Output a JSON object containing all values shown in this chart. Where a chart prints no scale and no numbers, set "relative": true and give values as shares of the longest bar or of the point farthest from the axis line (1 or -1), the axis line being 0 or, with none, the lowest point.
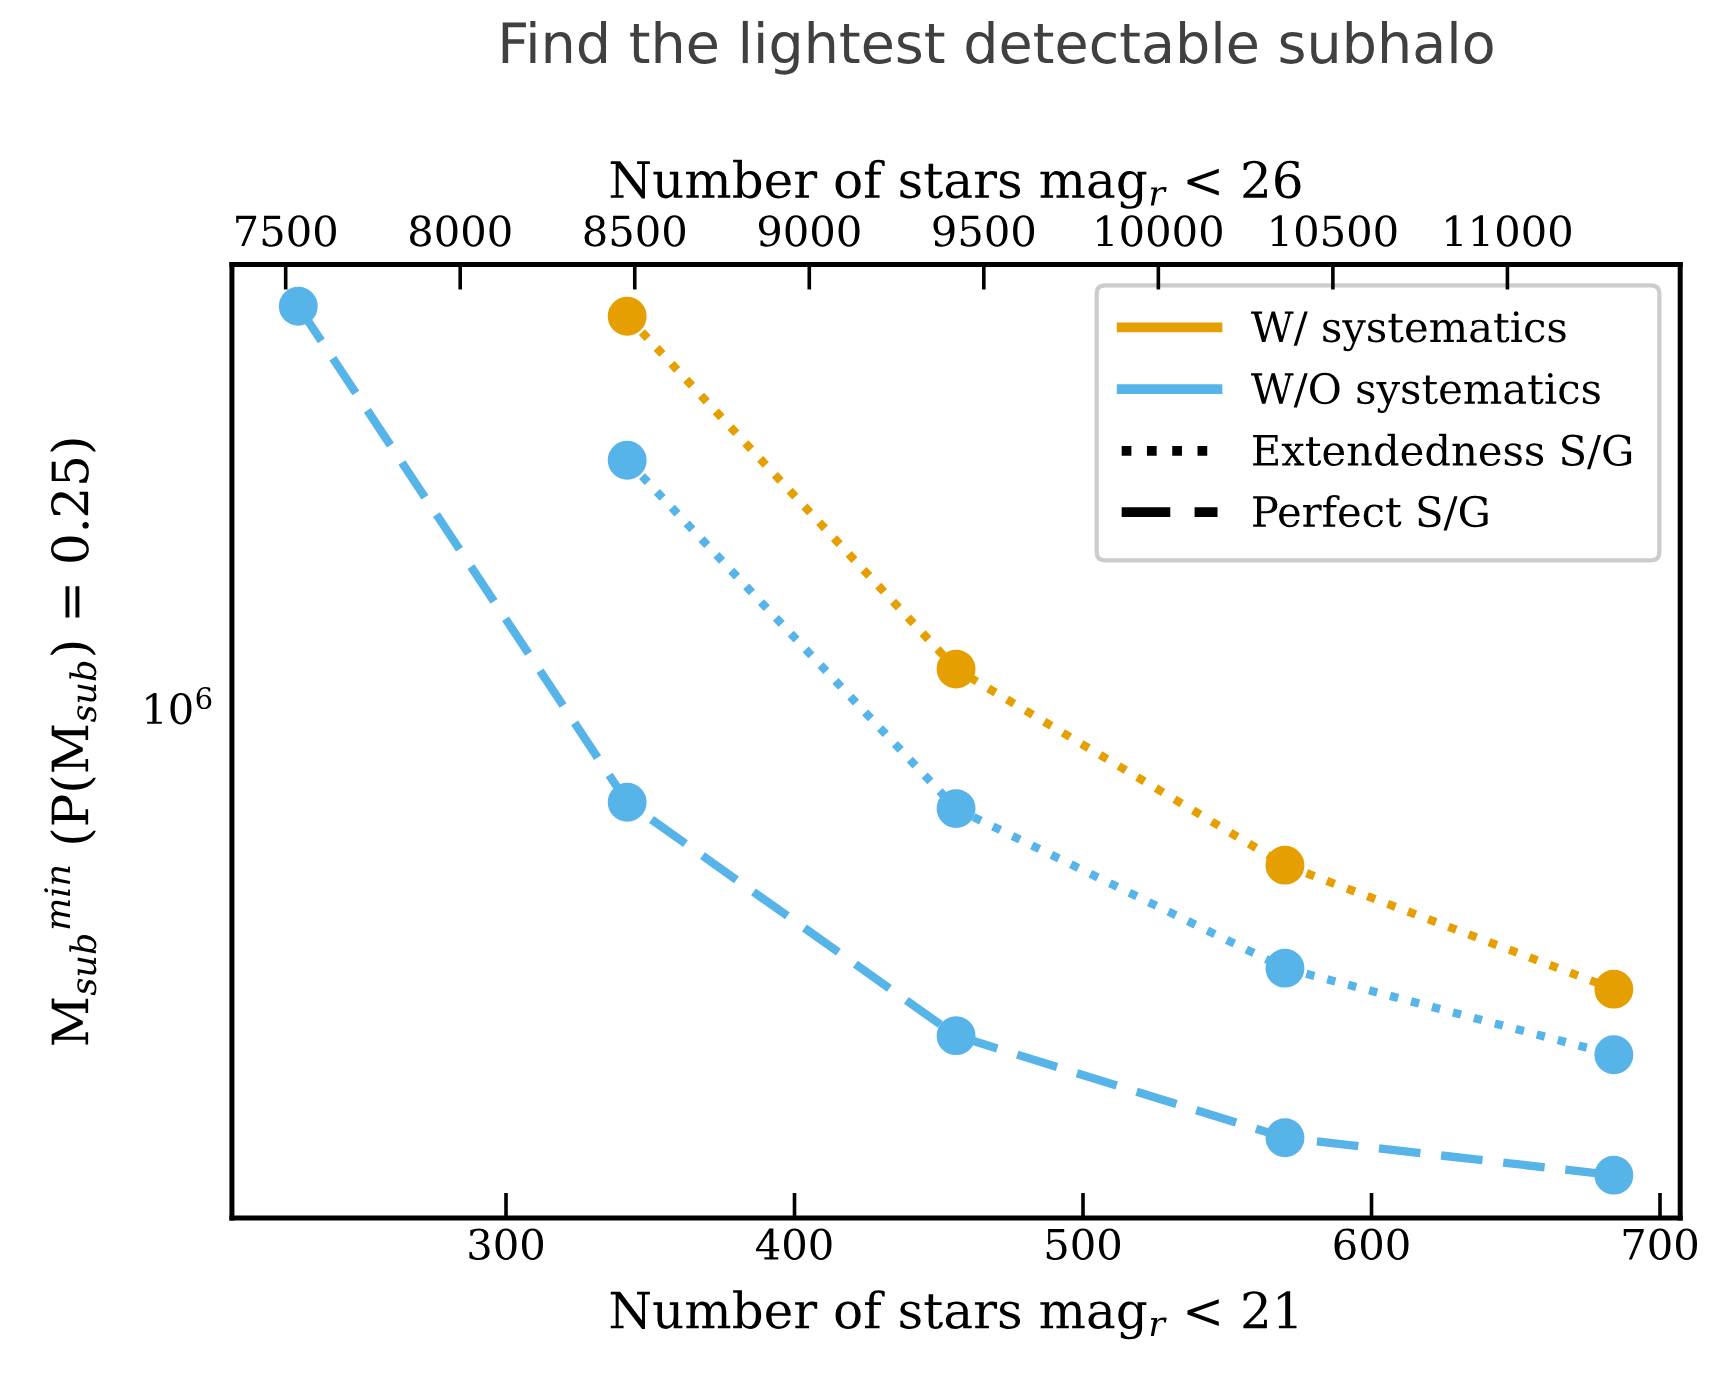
{
  "chart_data": {
    "type": "line",
    "title": "Find the lightest detectable subhalo",
    "xlabel": "Number of stars mag$_{r}$ < 21",
    "x2label": "Number of stars mag$_{r}$ < 26",
    "ylabel": "M$_{sub}$$^{min}$ (P(M$_{sub}$) = 0.25)",
    "relative": true,
    "x": [
      228,
      342,
      456,
      570,
      684
    ],
    "series": [
      {
        "color": "#56b4e9",
        "line_style": "dashed",
        "values": [
          1,
          0.456,
          0.2,
          0.088,
          0.047
        ]
      },
      {
        "color": "#56b4e9",
        "line_style": "dotted",
        "values": [
          null,
          0.831,
          0.449,
          0.274,
          0.179
        ]
      },
      {
        "color": "#e69f00",
        "line_style": "dotted",
        "values": [
          null,
          0.989,
          0.602,
          0.387,
          0.251
        ]
      },
      {
        "name": "W/ systematics",
        "color": "#e69f00",
        "line_style": "solid",
        "values": [
          null,
          null,
          null,
          null,
          null
        ]
      },
      {
        "name": "W/O systematics",
        "color": "#56b4e9",
        "line_style": "solid",
        "values": [
          null,
          null,
          null,
          null,
          null
        ]
      },
      {
        "name": "Extendedness S/G",
        "color": "#000000",
        "line_style": "dotted",
        "values": [
          null,
          null,
          null,
          null,
          null
        ]
      },
      {
        "name": "Perfect S/G",
        "color": "#000000",
        "line_style": "dashed",
        "values": [
          null,
          null,
          null,
          null,
          null
        ]
      }
    ],
    "annotations": [
      "10$^{6}$"
    ],
    "marker": "circle",
    "grid": false,
    "legend": "top right",
    "xlim": [
      205,
      707
    ],
    "xticks": [
      300,
      400,
      500,
      600,
      700
    ],
    "x2lim": [
      7346,
      11495
    ],
    "x2ticks": [
      7500,
      8000,
      8500,
      9000,
      9500,
      10000,
      10500,
      11000
    ]
  }
}
